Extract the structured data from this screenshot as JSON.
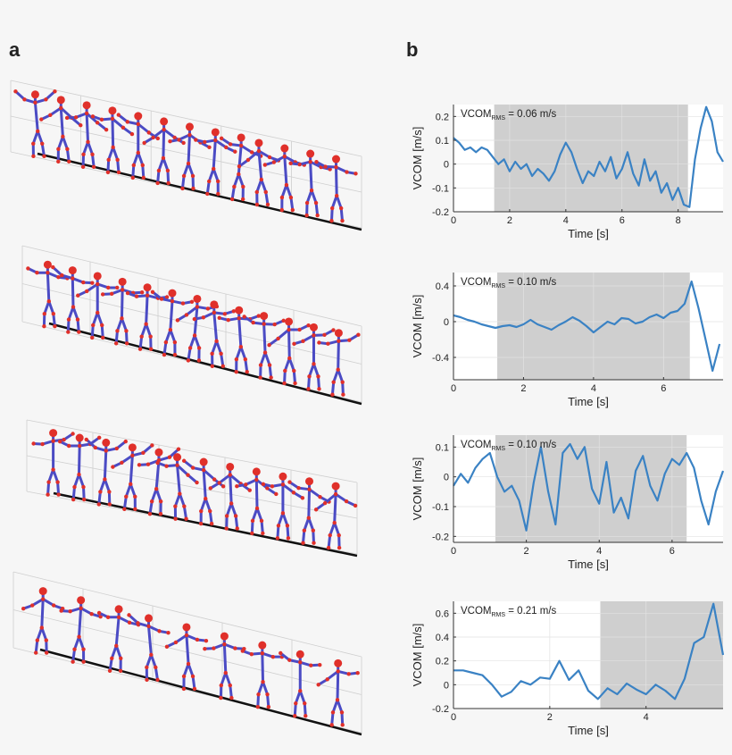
{
  "figure": {
    "panel_a_label": "a",
    "panel_b_label": "b",
    "stick_colors": {
      "limb": "#4b4bc4",
      "joint": "#e0302a",
      "ground": "#111111",
      "grid": "#cfcfcf"
    },
    "plot_colors": {
      "line": "#3a82c4",
      "shade": "#cfcfcf",
      "grid": "#e2e2e2"
    }
  },
  "stick_rows": [
    {
      "figure_count": 13
    },
    {
      "figure_count": 13
    },
    {
      "figure_count": 12
    },
    {
      "figure_count": 9
    }
  ],
  "chart_data": [
    {
      "type": "line",
      "annotation": {
        "prefix": "VCOM",
        "subscript": "RMS",
        "suffix": " = 0.06 m/s"
      },
      "xlabel": "Time [s]",
      "ylabel": "VCOM [m/s]",
      "xlim": [
        0,
        9.6
      ],
      "ylim": [
        -0.2,
        0.25
      ],
      "xticks": [
        0,
        2,
        4,
        6,
        8
      ],
      "xtick_labels": [
        "0",
        "2",
        "4",
        "6",
        "8"
      ],
      "yticks": [
        -0.2,
        -0.1,
        0,
        0.1,
        0.2
      ],
      "ytick_labels": [
        "-0.2",
        "-0.1",
        "0",
        "0.1",
        "0.2"
      ],
      "shaded_interval": [
        1.45,
        8.35
      ],
      "grid": true,
      "series": [
        {
          "x": [
            0,
            0.2,
            0.4,
            0.6,
            0.8,
            1.0,
            1.2,
            1.4,
            1.6,
            1.8,
            2.0,
            2.2,
            2.4,
            2.6,
            2.8,
            3.0,
            3.2,
            3.4,
            3.6,
            3.8,
            4.0,
            4.2,
            4.4,
            4.6,
            4.8,
            5.0,
            5.2,
            5.4,
            5.6,
            5.8,
            6.0,
            6.2,
            6.4,
            6.6,
            6.8,
            7.0,
            7.2,
            7.4,
            7.6,
            7.8,
            8.0,
            8.2,
            8.4,
            8.6,
            8.8,
            9.0,
            9.2,
            9.4,
            9.6
          ],
          "y": [
            0.11,
            0.09,
            0.06,
            0.07,
            0.05,
            0.07,
            0.06,
            0.03,
            0.0,
            0.02,
            -0.03,
            0.01,
            -0.02,
            0.0,
            -0.05,
            -0.02,
            -0.04,
            -0.07,
            -0.03,
            0.04,
            0.09,
            0.05,
            -0.02,
            -0.08,
            -0.03,
            -0.05,
            0.01,
            -0.03,
            0.03,
            -0.06,
            -0.02,
            0.05,
            -0.04,
            -0.09,
            0.02,
            -0.07,
            -0.03,
            -0.12,
            -0.08,
            -0.15,
            -0.1,
            -0.17,
            -0.18,
            0.02,
            0.15,
            0.24,
            0.18,
            0.05,
            0.01
          ]
        }
      ]
    },
    {
      "type": "line",
      "annotation": {
        "prefix": "VCOM",
        "subscript": "RMS",
        "suffix": " = 0.10 m/s"
      },
      "xlabel": "Time [s]",
      "ylabel": "VCOM [m/s]",
      "xlim": [
        0,
        7.7
      ],
      "ylim": [
        -0.65,
        0.55
      ],
      "xticks": [
        0,
        2,
        4,
        6
      ],
      "xtick_labels": [
        "0",
        "2",
        "4",
        "6"
      ],
      "yticks": [
        -0.4,
        0,
        0.4
      ],
      "ytick_labels": [
        "-0.4",
        "0",
        "0.4"
      ],
      "shaded_interval": [
        1.25,
        6.75
      ],
      "grid": true,
      "series": [
        {
          "x": [
            0,
            0.2,
            0.4,
            0.6,
            0.8,
            1.0,
            1.2,
            1.4,
            1.6,
            1.8,
            2.0,
            2.2,
            2.4,
            2.6,
            2.8,
            3.0,
            3.2,
            3.4,
            3.6,
            3.8,
            4.0,
            4.2,
            4.4,
            4.6,
            4.8,
            5.0,
            5.2,
            5.4,
            5.6,
            5.8,
            6.0,
            6.2,
            6.4,
            6.6,
            6.8,
            7.0,
            7.2,
            7.4,
            7.6
          ],
          "y": [
            0.07,
            0.05,
            0.02,
            0.0,
            -0.03,
            -0.05,
            -0.07,
            -0.05,
            -0.04,
            -0.06,
            -0.03,
            0.02,
            -0.03,
            -0.06,
            -0.09,
            -0.04,
            0.0,
            0.05,
            0.01,
            -0.05,
            -0.12,
            -0.06,
            0.0,
            -0.03,
            0.04,
            0.03,
            -0.02,
            0.0,
            0.05,
            0.08,
            0.04,
            0.1,
            0.12,
            0.2,
            0.45,
            0.15,
            -0.2,
            -0.55,
            -0.25
          ]
        }
      ]
    },
    {
      "type": "line",
      "annotation": {
        "prefix": "VCOM",
        "subscript": "RMS",
        "suffix": " = 0.10 m/s"
      },
      "xlabel": "Time [s]",
      "ylabel": "VCOM [m/s]",
      "xlim": [
        0,
        7.4
      ],
      "ylim": [
        -0.22,
        0.14
      ],
      "xticks": [
        0,
        2,
        4,
        6
      ],
      "xtick_labels": [
        "0",
        "2",
        "4",
        "6"
      ],
      "yticks": [
        -0.2,
        -0.1,
        0,
        0.1
      ],
      "ytick_labels": [
        "-0.2",
        "-0.1",
        "0",
        "0.1"
      ],
      "shaded_interval": [
        1.15,
        6.4
      ],
      "grid": true,
      "series": [
        {
          "x": [
            0,
            0.2,
            0.4,
            0.6,
            0.8,
            1.0,
            1.2,
            1.4,
            1.6,
            1.8,
            2.0,
            2.2,
            2.4,
            2.6,
            2.8,
            3.0,
            3.2,
            3.4,
            3.6,
            3.8,
            4.0,
            4.2,
            4.4,
            4.6,
            4.8,
            5.0,
            5.2,
            5.4,
            5.6,
            5.8,
            6.0,
            6.2,
            6.4,
            6.6,
            6.8,
            7.0,
            7.2,
            7.4
          ],
          "y": [
            -0.03,
            0.01,
            -0.02,
            0.03,
            0.06,
            0.08,
            0.0,
            -0.05,
            -0.03,
            -0.08,
            -0.18,
            -0.02,
            0.1,
            -0.05,
            -0.16,
            0.08,
            0.11,
            0.06,
            0.1,
            -0.04,
            -0.09,
            0.05,
            -0.12,
            -0.07,
            -0.14,
            0.02,
            0.07,
            -0.03,
            -0.08,
            0.01,
            0.06,
            0.04,
            0.08,
            0.03,
            -0.08,
            -0.16,
            -0.05,
            0.02
          ]
        }
      ]
    },
    {
      "type": "line",
      "annotation": {
        "prefix": "VCOM",
        "subscript": "RMS",
        "suffix": " = 0.21 m/s"
      },
      "xlabel": "Time [s]",
      "ylabel": "VCOM [m/s]",
      "xlim": [
        0,
        5.6
      ],
      "ylim": [
        -0.2,
        0.7
      ],
      "xticks": [
        0,
        2,
        4
      ],
      "xtick_labels": [
        "0",
        "2",
        "4"
      ],
      "yticks": [
        -0.2,
        0,
        0.2,
        0.4,
        0.6
      ],
      "ytick_labels": [
        "-0.2",
        "0",
        "0.2",
        "0.4",
        "0.6"
      ],
      "shaded_interval": [
        3.05,
        5.6
      ],
      "grid": true,
      "series": [
        {
          "x": [
            0,
            0.2,
            0.4,
            0.6,
            0.8,
            1.0,
            1.2,
            1.4,
            1.6,
            1.8,
            2.0,
            2.2,
            2.4,
            2.6,
            2.8,
            3.0,
            3.2,
            3.4,
            3.6,
            3.8,
            4.0,
            4.2,
            4.4,
            4.6,
            4.8,
            5.0,
            5.2,
            5.4,
            5.6
          ],
          "y": [
            0.12,
            0.12,
            0.1,
            0.08,
            0.0,
            -0.1,
            -0.06,
            0.03,
            0.0,
            0.06,
            0.05,
            0.2,
            0.04,
            0.12,
            -0.05,
            -0.12,
            -0.03,
            -0.08,
            0.01,
            -0.04,
            -0.08,
            0.0,
            -0.05,
            -0.12,
            0.05,
            0.35,
            0.4,
            0.68,
            0.25
          ]
        }
      ]
    }
  ]
}
